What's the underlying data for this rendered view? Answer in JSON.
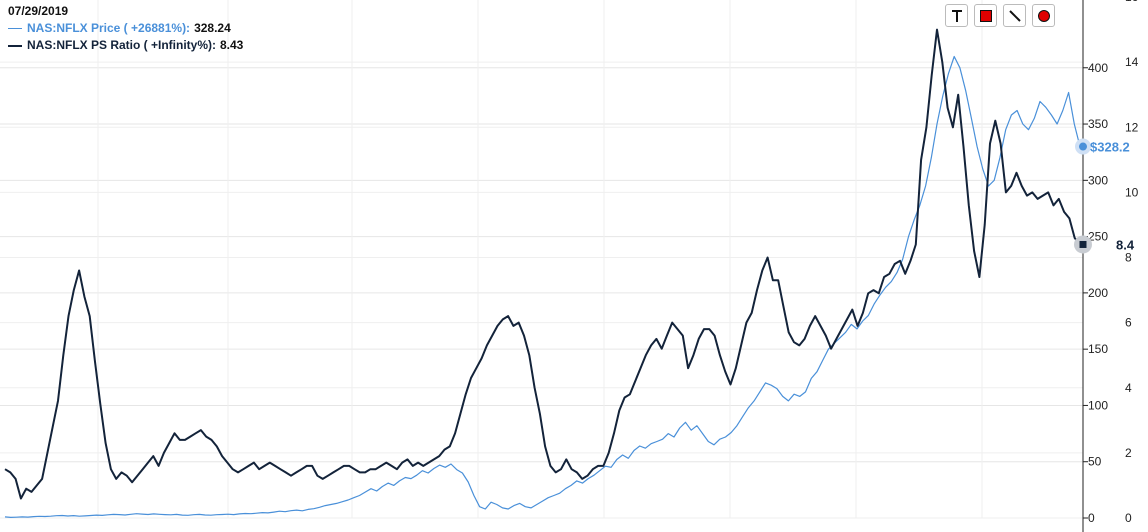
{
  "legend": {
    "date": "07/29/2019",
    "price": {
      "label": "NAS:NFLX Price ( +26881%):",
      "value": "328.24",
      "color": "#4a90d9"
    },
    "ps": {
      "label": "NAS:NFLX PS Ratio ( +Infinity%):",
      "value": "8.43",
      "color": "#13233a"
    }
  },
  "toolbar": {
    "items": [
      {
        "name": "text-tool",
        "icon": "text-T-icon"
      },
      {
        "name": "rectangle-tool",
        "icon": "red-square-icon"
      },
      {
        "name": "line-tool",
        "icon": "diagonal-line-icon"
      },
      {
        "name": "circle-tool",
        "icon": "red-circle-icon"
      }
    ]
  },
  "chart_data": {
    "type": "line",
    "grid": true,
    "legend_placement": "top-left",
    "axes": {
      "price": {
        "side": "right-inner",
        "ticks": [
          0,
          50,
          100,
          150,
          200,
          250,
          300,
          350,
          400
        ],
        "range": [
          0,
          430
        ]
      },
      "ps_ratio": {
        "side": "right-outer",
        "ticks": [
          0,
          2,
          4,
          6,
          8,
          10,
          12,
          14,
          16
        ],
        "range": [
          0,
          16
        ]
      }
    },
    "end_labels": {
      "price": "$328.2",
      "ps_ratio": "8.4"
    },
    "series": [
      {
        "name": "NAS:NFLX Price",
        "axis": "price",
        "color": "#4a90d9",
        "values": [
          1,
          0.5,
          0.7,
          1,
          0.8,
          1.2,
          1.5,
          1.3,
          1.6,
          2,
          2.2,
          1.8,
          2.1,
          1.6,
          1.9,
          2.2,
          2.6,
          2.3,
          2.8,
          3.2,
          3,
          2.7,
          3.3,
          3.8,
          3.5,
          3.1,
          3.6,
          3.3,
          3,
          2.8,
          3.2,
          2.6,
          2.4,
          2.9,
          3.2,
          2.7,
          2.5,
          2.9,
          3.1,
          3.4,
          3,
          3.6,
          4,
          3.8,
          4.3,
          4.8,
          4.5,
          5.2,
          6,
          5.6,
          6.5,
          7,
          6.4,
          7.6,
          8.3,
          9.5,
          11,
          12,
          13,
          14.5,
          16,
          18,
          20,
          23,
          26,
          24,
          28,
          31,
          29,
          33,
          36,
          35,
          38,
          42,
          40,
          44,
          47,
          45,
          48,
          43,
          40,
          32,
          20,
          10,
          8,
          14,
          12,
          9,
          8,
          11,
          13,
          10,
          9,
          12,
          15,
          18,
          20,
          22,
          26,
          29,
          33,
          31,
          35,
          38,
          42,
          46,
          45,
          52,
          56,
          53,
          60,
          64,
          62,
          66,
          68,
          70,
          75,
          72,
          80,
          85,
          78,
          82,
          75,
          68,
          65,
          70,
          72,
          76,
          82,
          90,
          98,
          104,
          112,
          120,
          118,
          115,
          108,
          104,
          110,
          108,
          112,
          124,
          130,
          140,
          150,
          155,
          160,
          165,
          172,
          168,
          175,
          180,
          190,
          198,
          205,
          210,
          218,
          230,
          250,
          265,
          278,
          295,
          320,
          350,
          375,
          395,
          410,
          400,
          380,
          355,
          330,
          310,
          295,
          300,
          320,
          345,
          358,
          362,
          350,
          345,
          355,
          370,
          365,
          358,
          350,
          362,
          378,
          350,
          330
        ]
      },
      {
        "name": "NAS:NFLX PS Ratio",
        "axis": "ps_ratio",
        "color": "#13233a",
        "values": [
          1.5,
          1.4,
          1.2,
          0.6,
          0.9,
          0.8,
          1,
          1.2,
          2,
          2.8,
          3.6,
          5,
          6.2,
          7,
          7.6,
          6.8,
          6.2,
          4.8,
          3.5,
          2.3,
          1.5,
          1.2,
          1.4,
          1.3,
          1.1,
          1.3,
          1.5,
          1.7,
          1.9,
          1.6,
          2,
          2.3,
          2.6,
          2.4,
          2.4,
          2.5,
          2.6,
          2.7,
          2.5,
          2.4,
          2.2,
          1.9,
          1.7,
          1.5,
          1.4,
          1.5,
          1.6,
          1.7,
          1.5,
          1.6,
          1.7,
          1.6,
          1.5,
          1.4,
          1.3,
          1.4,
          1.5,
          1.6,
          1.6,
          1.3,
          1.2,
          1.3,
          1.4,
          1.5,
          1.6,
          1.6,
          1.5,
          1.4,
          1.4,
          1.5,
          1.5,
          1.6,
          1.7,
          1.6,
          1.5,
          1.7,
          1.8,
          1.6,
          1.7,
          1.6,
          1.7,
          1.8,
          1.9,
          2.1,
          2.2,
          2.6,
          3.2,
          3.8,
          4.3,
          4.6,
          4.9,
          5.3,
          5.6,
          5.9,
          6.1,
          6.2,
          5.9,
          6,
          5.6,
          5,
          4,
          3.2,
          2.2,
          1.6,
          1.4,
          1.5,
          1.8,
          1.5,
          1.4,
          1.2,
          1.3,
          1.5,
          1.6,
          1.6,
          2,
          2.6,
          3.3,
          3.7,
          3.8,
          4.2,
          4.6,
          5,
          5.3,
          5.5,
          5.2,
          5.6,
          6,
          5.8,
          5.6,
          4.6,
          5,
          5.5,
          5.8,
          5.8,
          5.6,
          5,
          4.5,
          4.1,
          4.6,
          5.3,
          6,
          6.3,
          7,
          7.6,
          8,
          7.3,
          7.3,
          6.5,
          5.7,
          5.4,
          5.3,
          5.5,
          5.9,
          6.2,
          5.9,
          5.6,
          5.2,
          5.5,
          5.8,
          6.1,
          6.4,
          5.9,
          6.3,
          6.9,
          7,
          6.9,
          7.4,
          7.5,
          7.8,
          7.9,
          7.5,
          7.9,
          8.4,
          11,
          12,
          13.6,
          15,
          14,
          12.6,
          12,
          13,
          11.4,
          9.6,
          8.2,
          7.4,
          9,
          11.5,
          12.2,
          11.5,
          10,
          10.2,
          10.6,
          10.2,
          9.9,
          10,
          9.8,
          9.9,
          10,
          9.6,
          9.8,
          9.4,
          9.2,
          8.6,
          8.4
        ]
      }
    ]
  }
}
